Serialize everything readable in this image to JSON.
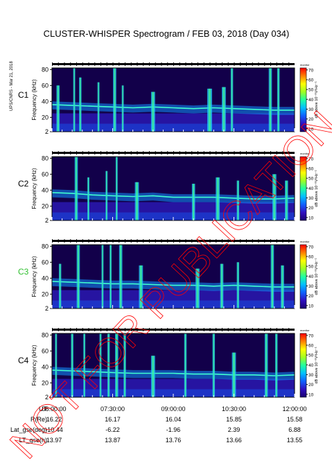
{
  "title": "CLUSTER-WHISPER Spectrogram / FEB 03, 2018 (Day 034)",
  "side_note": "UPS/CNRS - Mar 21, 2018",
  "watermark": "NOT FOR PUBLICATION",
  "colorbar": {
    "label": "dB above 10⁻⁸V²Hz⁻¹",
    "top_note": "monitor",
    "ticks": [
      10,
      20,
      30,
      40,
      50,
      60,
      70
    ],
    "range": [
      7,
      72
    ],
    "colors": [
      "#1a0070",
      "#3010c0",
      "#1060ff",
      "#00c0ff",
      "#20ffa0",
      "#a0ff20",
      "#ffff00",
      "#ff8000",
      "#ff0000"
    ]
  },
  "ephemeris": {
    "rows": [
      {
        "label": "UT",
        "values": [
          "06:00:00",
          "07:30:00",
          "09:00:00",
          "10:30:00",
          "12:00:00"
        ]
      },
      {
        "label": "R(Re)",
        "values": [
          "16.22",
          "16.17",
          "16.04",
          "15.85",
          "15.58"
        ]
      },
      {
        "label": "Lat_gse(deg)",
        "values": [
          "-10.44",
          "-6.22",
          "-1.96",
          "2.39",
          "6.88"
        ]
      },
      {
        "label": "LT_gse(h)",
        "values": [
          "13.97",
          "13.87",
          "13.76",
          "13.66",
          "13.55"
        ]
      }
    ]
  },
  "chart_data": [
    {
      "type": "heatmap",
      "name": "C1",
      "label_color": "#000000",
      "xlabel": "",
      "ylabel": "Frequency (kHz)",
      "xlim": [
        "06:00:00",
        "12:00:00"
      ],
      "ylim": [
        2,
        82
      ],
      "yticks": [
        2,
        20,
        40,
        60,
        80
      ],
      "plasma_line_kHz": [
        [
          6.0,
          36
        ],
        [
          6.5,
          35
        ],
        [
          7.0,
          34
        ],
        [
          7.5,
          33
        ],
        [
          8.0,
          32
        ],
        [
          8.5,
          33
        ],
        [
          9.0,
          32
        ],
        [
          9.5,
          31
        ],
        [
          10.0,
          32
        ],
        [
          10.5,
          31
        ],
        [
          11.0,
          30
        ],
        [
          11.5,
          29
        ],
        [
          12.0,
          29
        ]
      ],
      "bursts": [
        [
          6.15,
          0.08,
          60
        ],
        [
          6.55,
          0.05,
          82
        ],
        [
          6.7,
          0.06,
          70
        ],
        [
          7.15,
          0.05,
          64
        ],
        [
          7.55,
          0.08,
          82
        ],
        [
          7.75,
          0.05,
          60
        ],
        [
          8.5,
          0.1,
          52
        ],
        [
          9.9,
          0.12,
          56
        ],
        [
          10.25,
          0.1,
          58
        ],
        [
          10.45,
          0.06,
          82
        ],
        [
          11.4,
          0.08,
          82
        ],
        [
          11.6,
          0.06,
          82
        ]
      ]
    },
    {
      "type": "heatmap",
      "name": "C2",
      "label_color": "#000000",
      "xlabel": "",
      "ylabel": "Frequency (kHz)",
      "xlim": [
        "06:00:00",
        "12:00:00"
      ],
      "ylim": [
        2,
        82
      ],
      "yticks": [
        2,
        20,
        40,
        60,
        80
      ],
      "plasma_line_kHz": [
        [
          6.0,
          37
        ],
        [
          6.5,
          36
        ],
        [
          7.0,
          34
        ],
        [
          7.5,
          33
        ],
        [
          8.0,
          32
        ],
        [
          8.5,
          33
        ],
        [
          9.0,
          31
        ],
        [
          9.5,
          31
        ],
        [
          10.0,
          31
        ],
        [
          10.5,
          30
        ],
        [
          11.0,
          29
        ],
        [
          11.5,
          29
        ],
        [
          12.0,
          30
        ]
      ],
      "bursts": [
        [
          6.6,
          0.08,
          82
        ],
        [
          6.9,
          0.05,
          56
        ],
        [
          7.35,
          0.05,
          64
        ],
        [
          7.6,
          0.05,
          82
        ],
        [
          8.1,
          0.1,
          50
        ],
        [
          9.5,
          0.08,
          48
        ],
        [
          10.1,
          0.1,
          56
        ],
        [
          10.6,
          0.06,
          52
        ],
        [
          11.5,
          0.1,
          60
        ],
        [
          11.8,
          0.08,
          52
        ]
      ]
    },
    {
      "type": "heatmap",
      "name": "C3",
      "label_color": "#30c030",
      "xlabel": "",
      "ylabel": "Frequency (kHz)",
      "xlim": [
        "06:00:00",
        "12:00:00"
      ],
      "ylim": [
        2,
        82
      ],
      "yticks": [
        2,
        20,
        40,
        60,
        80
      ],
      "plasma_line_kHz": [
        [
          6.0,
          36
        ],
        [
          6.5,
          35
        ],
        [
          7.0,
          34
        ],
        [
          7.5,
          33
        ],
        [
          8.0,
          33
        ],
        [
          8.5,
          32
        ],
        [
          9.0,
          31
        ],
        [
          9.5,
          31
        ],
        [
          10.0,
          30
        ],
        [
          10.5,
          31
        ],
        [
          11.0,
          30
        ],
        [
          11.5,
          29
        ],
        [
          12.0,
          29
        ]
      ],
      "bursts": [
        [
          6.2,
          0.06,
          58
        ],
        [
          6.65,
          0.08,
          82
        ],
        [
          7.25,
          0.05,
          82
        ],
        [
          7.45,
          0.05,
          82
        ],
        [
          7.7,
          0.08,
          82
        ],
        [
          8.2,
          0.1,
          56
        ],
        [
          9.6,
          0.1,
          52
        ],
        [
          10.2,
          0.08,
          58
        ],
        [
          10.6,
          0.06,
          60
        ],
        [
          11.45,
          0.08,
          82
        ],
        [
          11.7,
          0.08,
          56
        ]
      ]
    },
    {
      "type": "heatmap",
      "name": "C4",
      "label_color": "#000000",
      "xlabel": "",
      "ylabel": "Frequency (kHz)",
      "xlim": [
        "06:00:00",
        "12:00:00"
      ],
      "ylim": [
        2,
        82
      ],
      "yticks": [
        2,
        20,
        40,
        60,
        80
      ],
      "plasma_line_kHz": [
        [
          6.0,
          36
        ],
        [
          6.5,
          35
        ],
        [
          7.0,
          34
        ],
        [
          7.5,
          33
        ],
        [
          8.0,
          32
        ],
        [
          8.5,
          32
        ],
        [
          9.0,
          32
        ],
        [
          9.5,
          31
        ],
        [
          10.0,
          31
        ],
        [
          10.5,
          30
        ],
        [
          11.0,
          30
        ],
        [
          11.5,
          29
        ],
        [
          12.0,
          30
        ]
      ],
      "bursts": [
        [
          6.1,
          0.05,
          82
        ],
        [
          6.5,
          0.06,
          82
        ],
        [
          6.8,
          0.05,
          82
        ],
        [
          7.2,
          0.05,
          82
        ],
        [
          7.4,
          0.06,
          82
        ],
        [
          7.6,
          0.08,
          82
        ],
        [
          7.8,
          0.06,
          82
        ],
        [
          8.5,
          0.1,
          54
        ],
        [
          9.3,
          0.06,
          82
        ],
        [
          10.0,
          0.06,
          82
        ],
        [
          10.5,
          0.1,
          58
        ],
        [
          11.3,
          0.08,
          82
        ],
        [
          11.55,
          0.06,
          82
        ]
      ]
    }
  ]
}
